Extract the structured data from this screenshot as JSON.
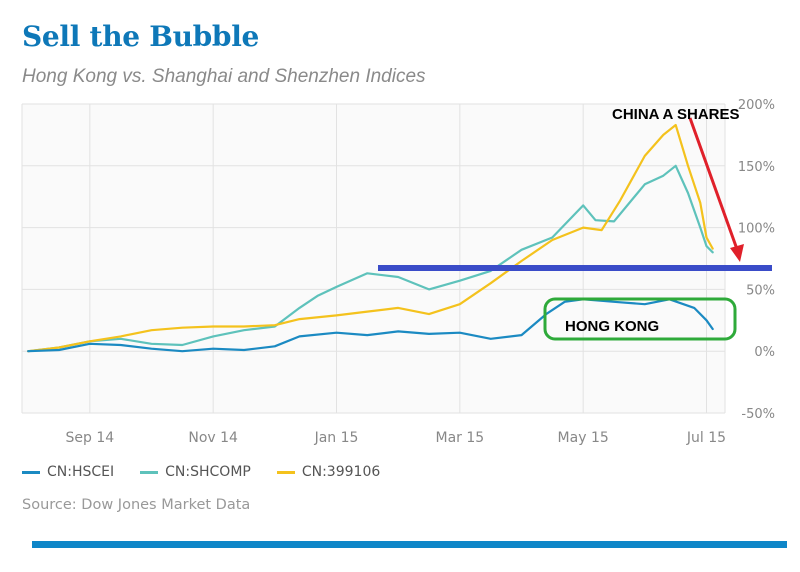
{
  "header": {
    "title": "Sell the Bubble",
    "subtitle": "Hong Kong vs. Shanghai and Shenzhen Indices"
  },
  "annotations": {
    "china": "CHINA A SHARES",
    "hk": "HONG KONG"
  },
  "colors": {
    "hscei": "#1b8ac2",
    "shcomp": "#5ec2bb",
    "sz399106": "#f4c21d",
    "grid": "#e2e2e2",
    "plot_bg": "#fafafa",
    "axis_text": "#888888",
    "annotation_arrow": "#e0202a",
    "annotation_line": "#3a4cc8",
    "annotation_box": "#2eaa3a",
    "title": "#0e78b8"
  },
  "legend": [
    {
      "label": "CN:HSCEI",
      "color": "#1b8ac2"
    },
    {
      "label": "CN:SHCOMP",
      "color": "#5ec2bb"
    },
    {
      "label": "CN:399106",
      "color": "#f4c21d"
    }
  ],
  "source": "Source: Dow Jones Market Data",
  "chart_data": {
    "type": "line",
    "title": "Sell the Bubble",
    "subtitle": "Hong Kong vs. Shanghai and Shenzhen Indices",
    "x_unit": "month index (0 = start of Aug 2014)",
    "x_ticks": [
      {
        "label": "Sep 14",
        "x": 1.0
      },
      {
        "label": "Nov 14",
        "x": 3.0
      },
      {
        "label": "Jan 15",
        "x": 5.0
      },
      {
        "label": "Mar 15",
        "x": 7.0
      },
      {
        "label": "May 15",
        "x": 9.0
      },
      {
        "label": "Jul 15",
        "x": 11.0
      }
    ],
    "xlim": [
      -0.1,
      11.3
    ],
    "y_ticks": [
      {
        "label": "200%",
        "value": 200
      },
      {
        "label": "150%",
        "value": 150
      },
      {
        "label": "100%",
        "value": 100
      },
      {
        "label": "50%",
        "value": 50
      },
      {
        "label": "0%",
        "value": 0
      },
      {
        "label": "-50%",
        "value": -50
      }
    ],
    "ylim": [
      -50,
      200
    ],
    "y_axis_position": "right",
    "grid": true,
    "legend_position": "bottom-left",
    "series": [
      {
        "name": "CN:HSCEI",
        "color": "#1b8ac2",
        "points": [
          [
            0,
            0
          ],
          [
            0.5,
            1
          ],
          [
            1.0,
            6
          ],
          [
            1.5,
            5
          ],
          [
            2.0,
            2
          ],
          [
            2.5,
            0
          ],
          [
            3.0,
            2
          ],
          [
            3.5,
            1
          ],
          [
            4.0,
            4
          ],
          [
            4.4,
            12
          ],
          [
            5.0,
            15
          ],
          [
            5.5,
            13
          ],
          [
            6.0,
            16
          ],
          [
            6.5,
            14
          ],
          [
            7.0,
            15
          ],
          [
            7.5,
            10
          ],
          [
            8.0,
            13
          ],
          [
            8.4,
            30
          ],
          [
            8.7,
            40
          ],
          [
            9.0,
            42
          ],
          [
            9.5,
            40
          ],
          [
            10.0,
            38
          ],
          [
            10.4,
            42
          ],
          [
            10.8,
            35
          ],
          [
            11.0,
            25
          ],
          [
            11.1,
            18
          ]
        ]
      },
      {
        "name": "CN:SHCOMP",
        "color": "#5ec2bb",
        "points": [
          [
            0,
            0
          ],
          [
            0.5,
            3
          ],
          [
            1.0,
            8
          ],
          [
            1.5,
            10
          ],
          [
            2.0,
            6
          ],
          [
            2.5,
            5
          ],
          [
            3.0,
            12
          ],
          [
            3.5,
            17
          ],
          [
            4.0,
            20
          ],
          [
            4.4,
            35
          ],
          [
            4.7,
            45
          ],
          [
            5.0,
            52
          ],
          [
            5.5,
            63
          ],
          [
            6.0,
            60
          ],
          [
            6.5,
            50
          ],
          [
            7.0,
            57
          ],
          [
            7.5,
            65
          ],
          [
            8.0,
            82
          ],
          [
            8.5,
            92
          ],
          [
            9.0,
            118
          ],
          [
            9.2,
            106
          ],
          [
            9.5,
            105
          ],
          [
            10.0,
            135
          ],
          [
            10.3,
            142
          ],
          [
            10.5,
            150
          ],
          [
            10.7,
            128
          ],
          [
            10.9,
            100
          ],
          [
            11.0,
            85
          ],
          [
            11.1,
            80
          ]
        ]
      },
      {
        "name": "CN:399106",
        "color": "#f4c21d",
        "points": [
          [
            0,
            0
          ],
          [
            0.5,
            3
          ],
          [
            1.0,
            8
          ],
          [
            1.5,
            12
          ],
          [
            2.0,
            17
          ],
          [
            2.5,
            19
          ],
          [
            3.0,
            20
          ],
          [
            3.5,
            20
          ],
          [
            4.0,
            21
          ],
          [
            4.4,
            26
          ],
          [
            5.0,
            29
          ],
          [
            5.5,
            32
          ],
          [
            6.0,
            35
          ],
          [
            6.5,
            30
          ],
          [
            7.0,
            38
          ],
          [
            7.5,
            55
          ],
          [
            8.0,
            73
          ],
          [
            8.5,
            90
          ],
          [
            9.0,
            100
          ],
          [
            9.3,
            98
          ],
          [
            9.6,
            122
          ],
          [
            10.0,
            158
          ],
          [
            10.3,
            175
          ],
          [
            10.5,
            183
          ],
          [
            10.7,
            150
          ],
          [
            10.9,
            120
          ],
          [
            11.0,
            92
          ],
          [
            11.1,
            83
          ]
        ]
      }
    ],
    "annotations": [
      {
        "text": "CHINA A SHARES",
        "type": "label-with-arrow",
        "arrow_color": "#e0202a"
      },
      {
        "text": "HONG KONG",
        "type": "label-in-box",
        "box_color": "#2eaa3a"
      },
      {
        "type": "horizontal-line",
        "value": 67,
        "color": "#3a4cc8"
      }
    ]
  }
}
